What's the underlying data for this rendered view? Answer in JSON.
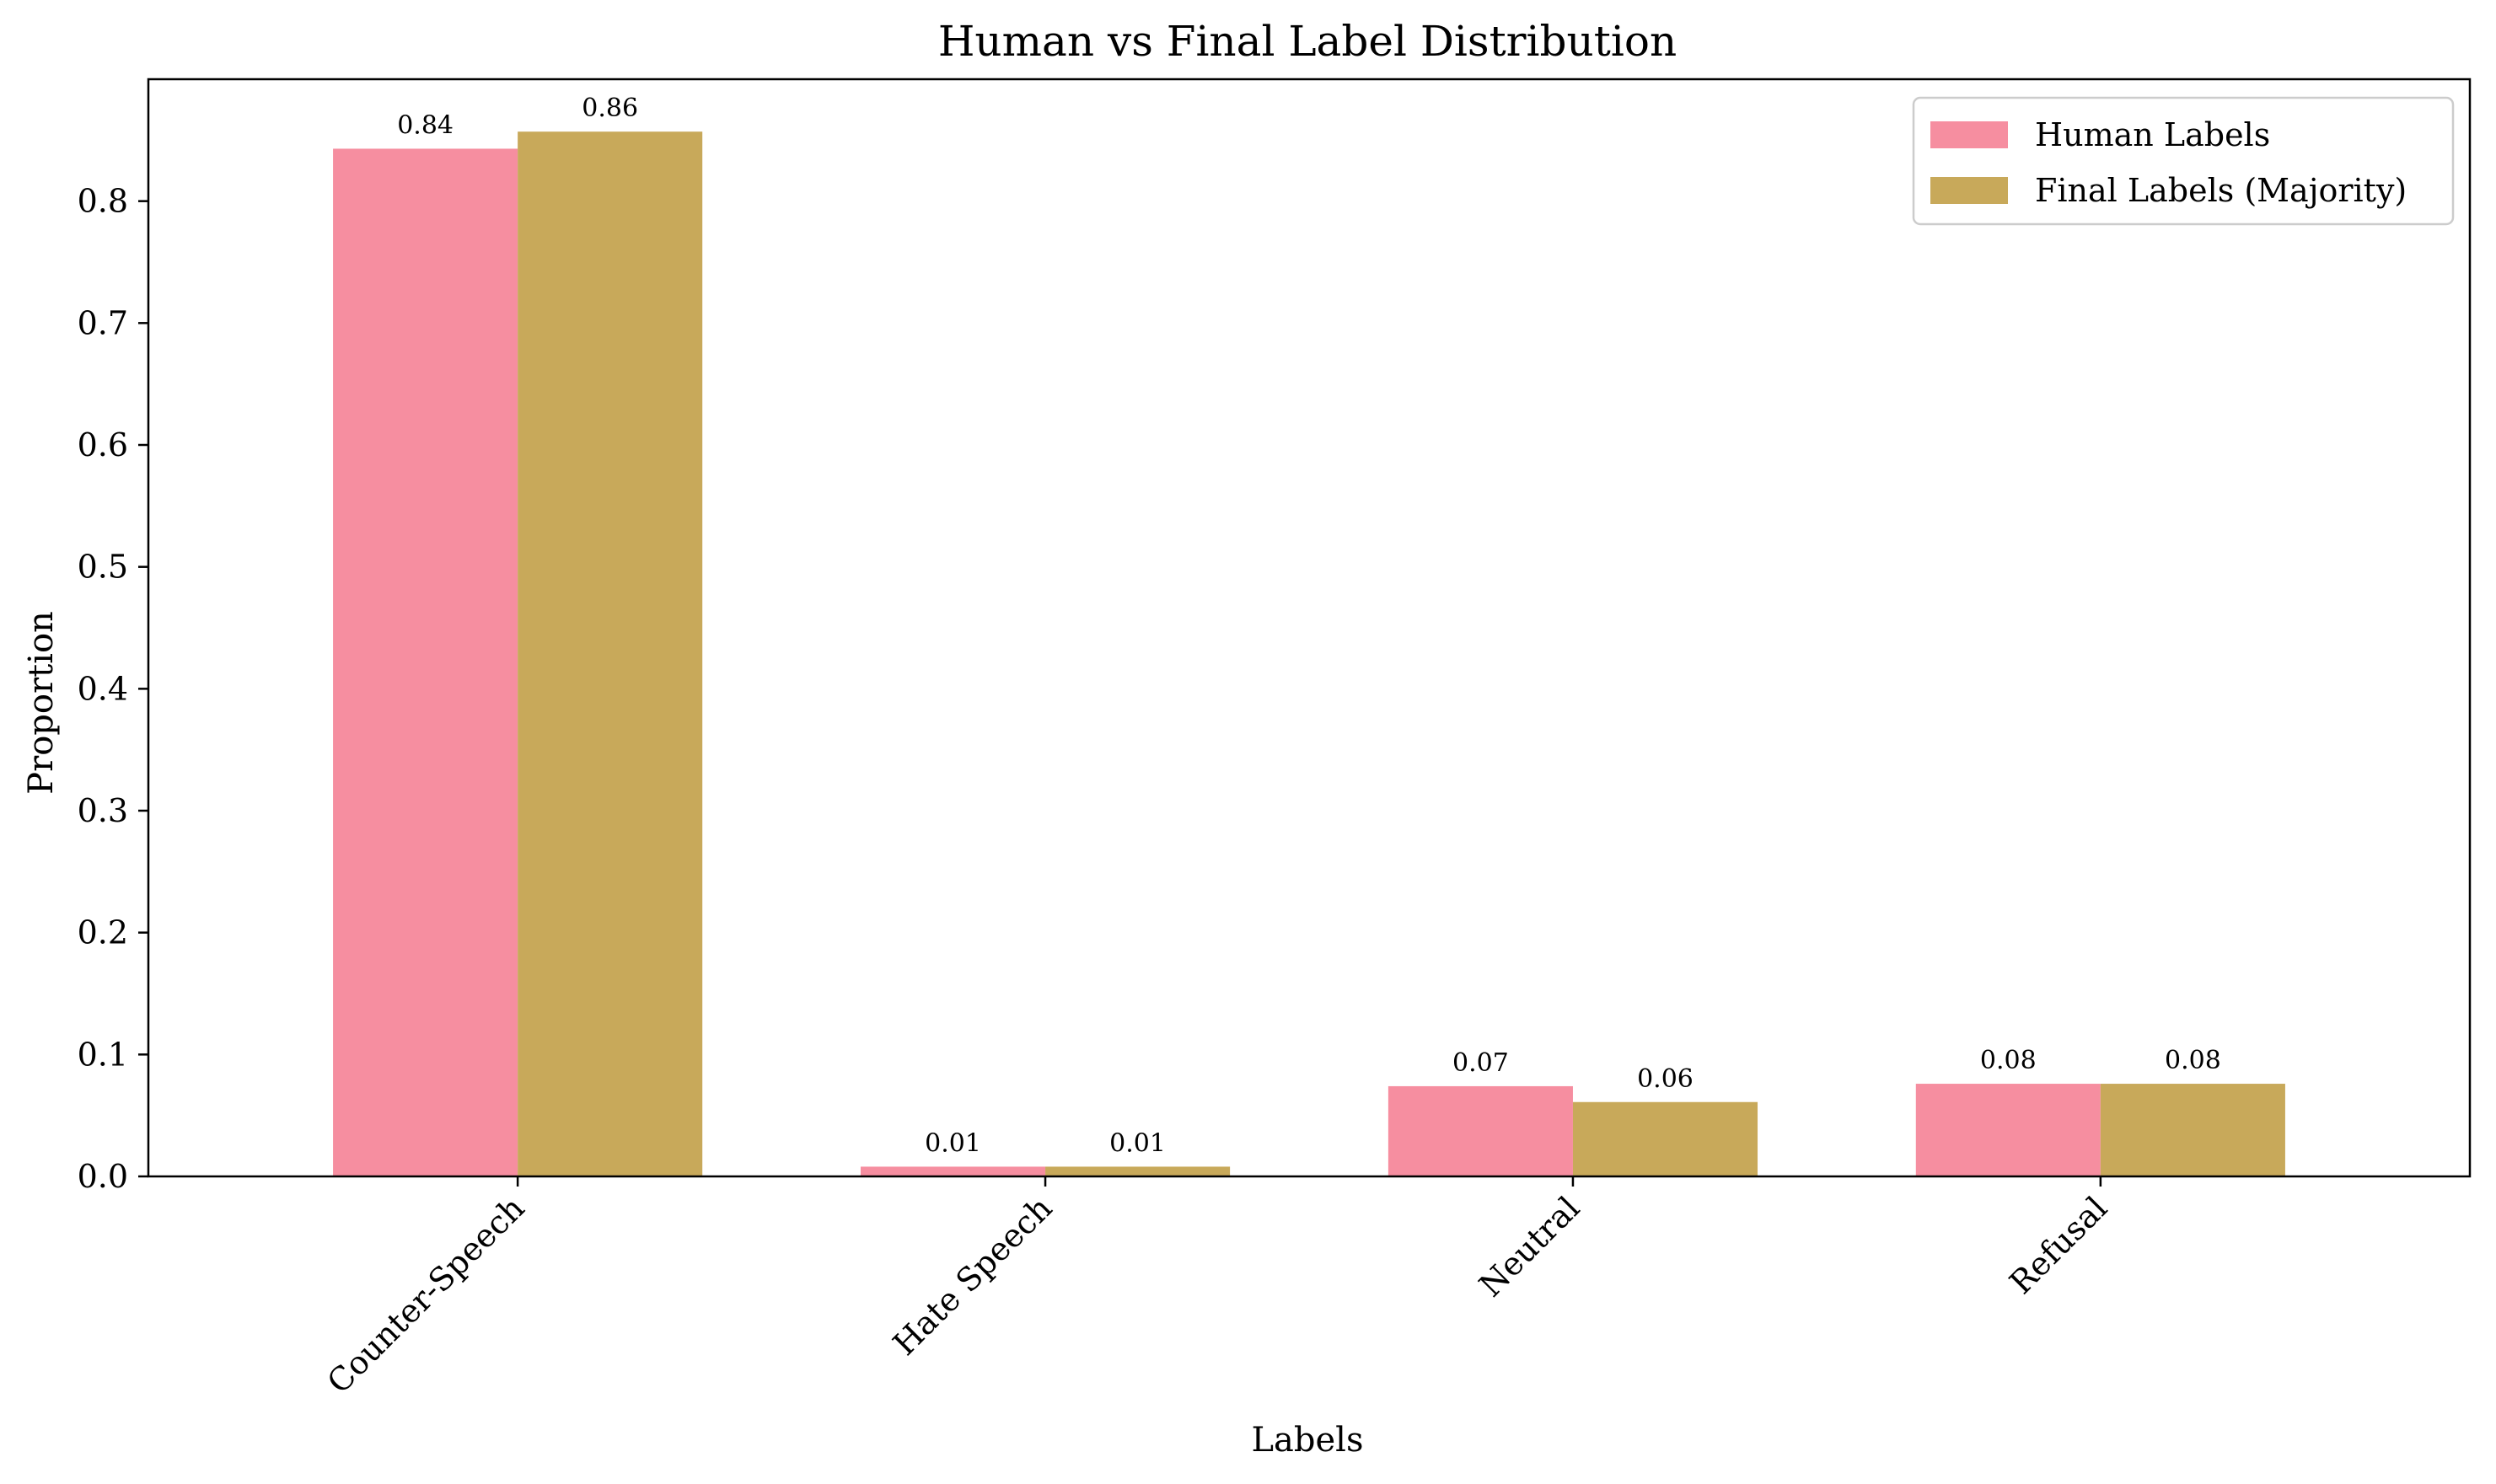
{
  "chart_data": {
    "type": "bar",
    "title": "Human vs Final Label Distribution",
    "xlabel": "Labels",
    "ylabel": "Proportion",
    "categories": [
      "Counter-Speech",
      "Hate Speech",
      "Neutral",
      "Refusal"
    ],
    "series": [
      {
        "name": "Human Labels",
        "color": "#f68ea0",
        "values": [
          0.843,
          0.008,
          0.074,
          0.076
        ],
        "value_labels": [
          "0.84",
          "0.01",
          "0.07",
          "0.08"
        ]
      },
      {
        "name": "Final Labels (Majority)",
        "color": "#c8a95a",
        "values": [
          0.857,
          0.008,
          0.061,
          0.076
        ],
        "value_labels": [
          "0.86",
          "0.01",
          "0.06",
          "0.08"
        ]
      }
    ],
    "ylim": [
      0,
      0.9
    ],
    "yticks": [
      0.0,
      0.1,
      0.2,
      0.3,
      0.4,
      0.5,
      0.6,
      0.7,
      0.8
    ],
    "ytick_labels": [
      "0.0",
      "0.1",
      "0.2",
      "0.3",
      "0.4",
      "0.5",
      "0.6",
      "0.7",
      "0.8"
    ],
    "grid": false,
    "legend_position": "top-right",
    "xtick_rotation": "45 degrees"
  }
}
